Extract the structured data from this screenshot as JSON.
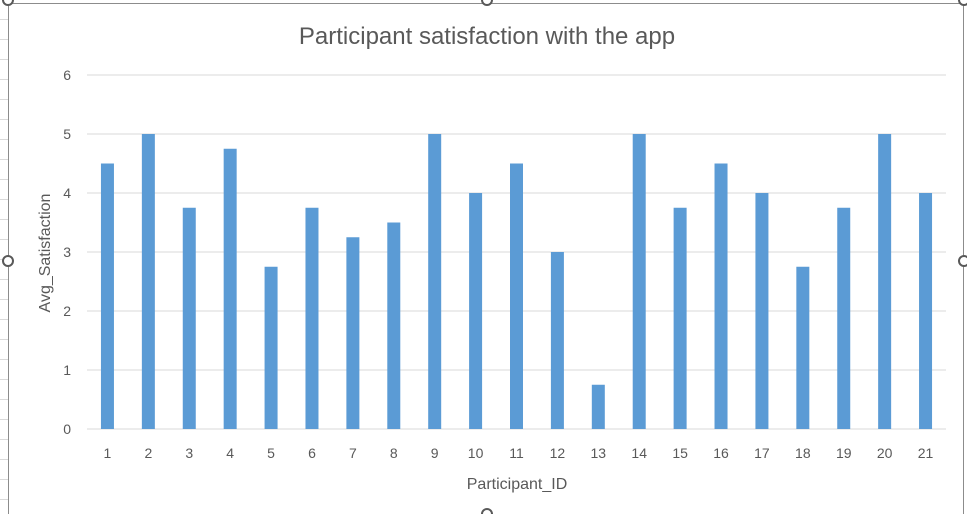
{
  "chart_data": {
    "type": "bar",
    "title": "Participant satisfaction with the app",
    "xlabel": "Participant_ID",
    "ylabel": "Avg_Satisfaction",
    "categories": [
      "1",
      "2",
      "3",
      "4",
      "5",
      "6",
      "7",
      "8",
      "9",
      "10",
      "11",
      "12",
      "13",
      "14",
      "15",
      "16",
      "17",
      "18",
      "19",
      "20",
      "21"
    ],
    "series": [
      {
        "values": [
          4.5,
          5,
          3.75,
          4.75,
          2.75,
          3.75,
          3.25,
          3.5,
          5,
          4,
          4.5,
          3,
          0.75,
          5,
          3.75,
          4.5,
          4,
          2.75,
          3.75,
          5,
          4
        ]
      }
    ],
    "ylim": [
      0,
      6
    ],
    "yticks": [
      0,
      1,
      2,
      3,
      4,
      5,
      6
    ],
    "grid": true,
    "legend": "none",
    "bar_color": "#5b9bd5",
    "grid_color": "#d9d9d9",
    "text_color": "#595959"
  }
}
